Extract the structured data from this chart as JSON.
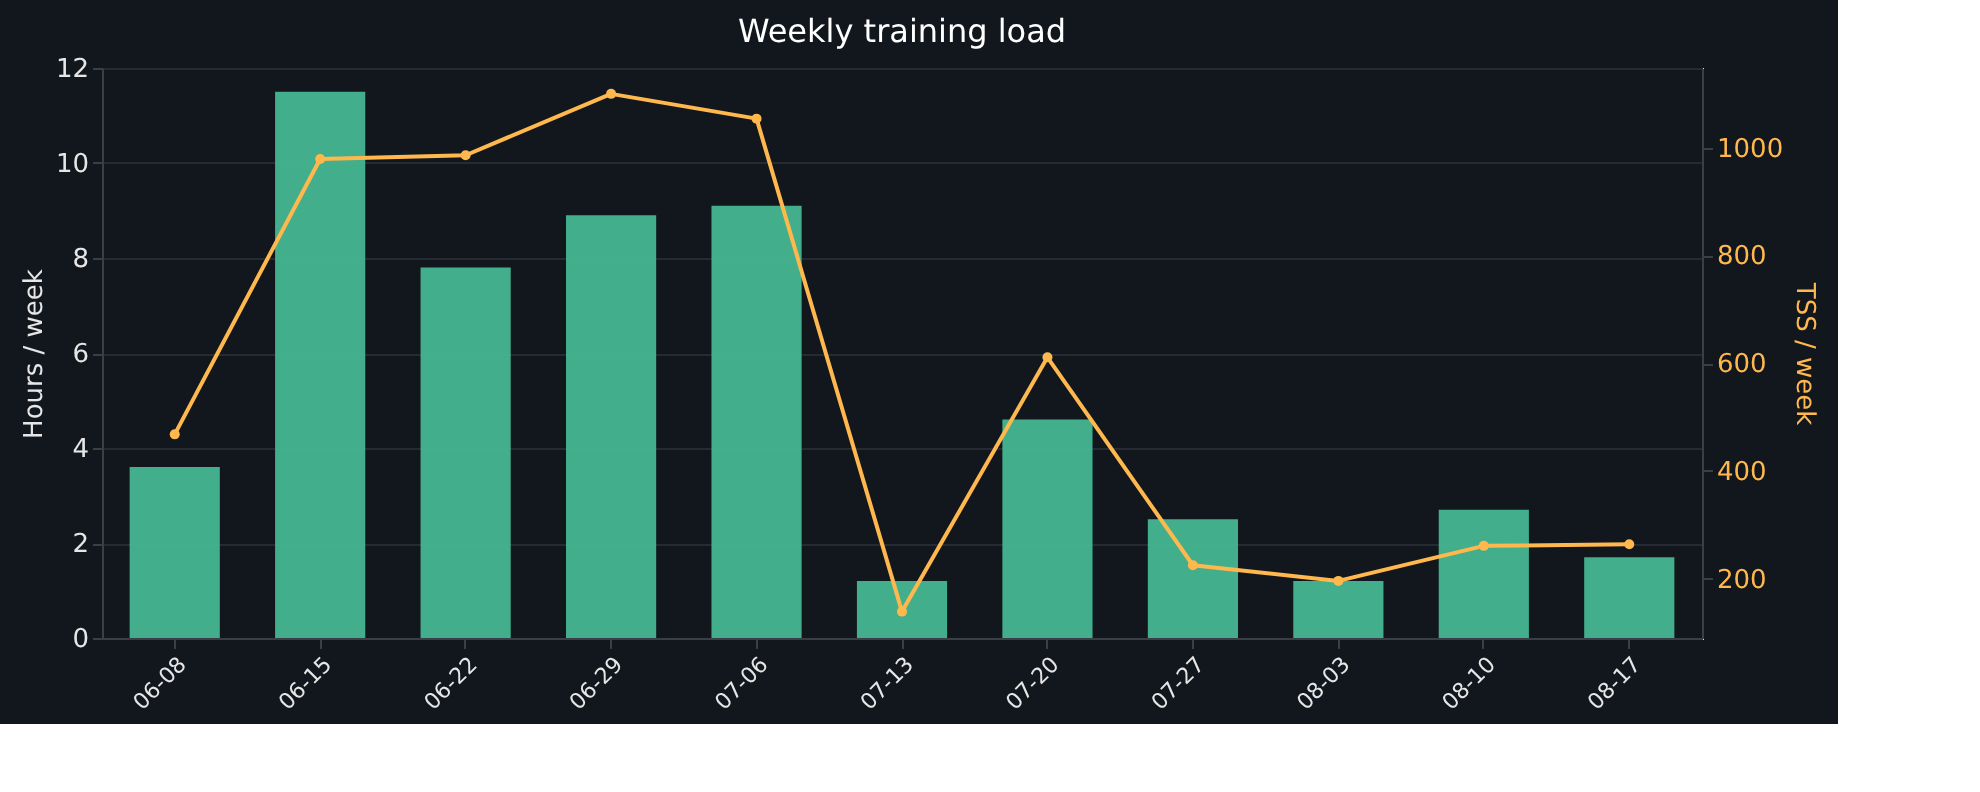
{
  "chart_data": {
    "type": "bar",
    "title": "Weekly training load",
    "ylabel": "Hours / week",
    "y2label": "TSS / week",
    "categories": [
      "06-08",
      "06-15",
      "06-22",
      "06-29",
      "07-06",
      "07-13",
      "07-20",
      "07-27",
      "08-03",
      "08-10",
      "08-17"
    ],
    "series": [
      {
        "color": "#46b692",
        "values": [
          3.6,
          11.5,
          7.8,
          8.9,
          9.1,
          1.2,
          4.6,
          2.5,
          1.2,
          2.7,
          1.7
        ]
      },
      {
        "type": "line",
        "axis": "y2",
        "color": "#ffb84d",
        "marker": "circle",
        "values": [
          468,
          979,
          986,
          1100,
          1054,
          139,
          611,
          225,
          196,
          261,
          264
        ]
      }
    ],
    "ylim": [
      0,
      12
    ],
    "yticks": [
      0,
      2,
      4,
      6,
      8,
      10,
      12
    ],
    "y2lim": [
      90,
      1148
    ],
    "y2ticks": [
      200,
      400,
      600,
      800,
      1000
    ],
    "grid": "y"
  }
}
